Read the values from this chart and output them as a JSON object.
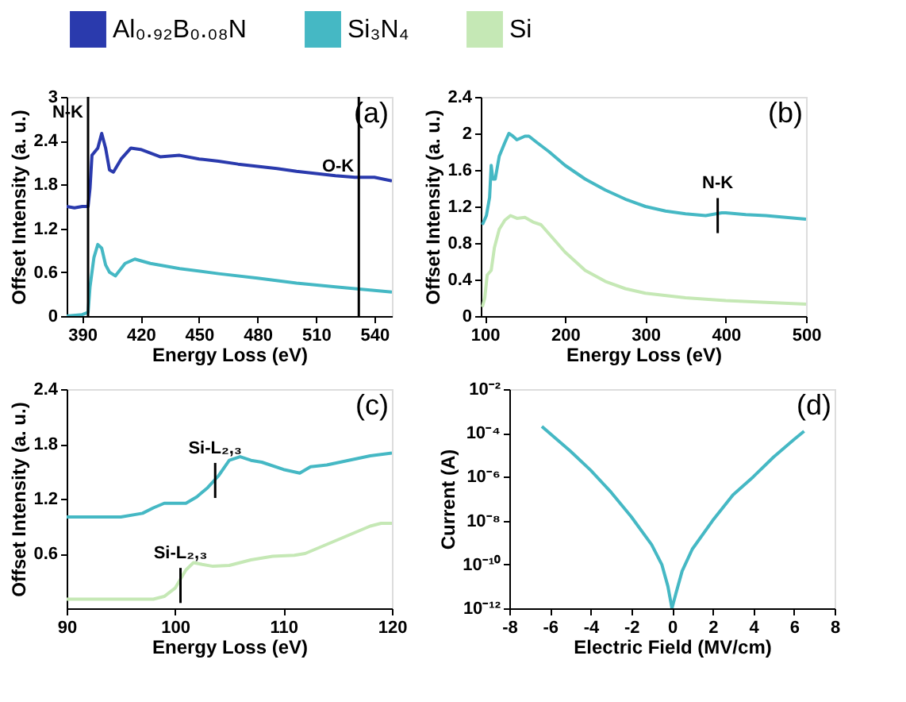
{
  "chart_data": [
    {
      "type": "line",
      "xlabel": "Energy Loss (eV)",
      "ylabel": "Offset Intensity (a. u.)",
      "legend": "top",
      "xlim": [
        382,
        549
      ],
      "xticks": [
        390,
        420,
        450,
        480,
        510,
        540
      ],
      "ylim": [
        0,
        3
      ],
      "yticks": [
        0,
        0.6,
        1.2,
        1.8,
        2.4,
        3
      ],
      "series": [
        {
          "name": "Al₀.₉₂B₀.₀₈N",
          "color": "#2a3aad",
          "x": [
            382,
            386,
            390,
            393,
            394,
            395,
            398,
            400,
            402,
            404,
            406,
            410,
            415,
            420,
            430,
            440,
            450,
            460,
            470,
            480,
            490,
            500,
            510,
            520,
            530,
            540,
            549
          ],
          "values": [
            1.5,
            1.48,
            1.5,
            1.5,
            1.75,
            2.2,
            2.3,
            2.5,
            2.3,
            2.0,
            1.97,
            2.15,
            2.3,
            2.28,
            2.18,
            2.2,
            2.15,
            2.12,
            2.08,
            2.05,
            2.02,
            1.98,
            1.95,
            1.92,
            1.9,
            1.9,
            1.85
          ]
        },
        {
          "name": "Si₃N₄",
          "color": "#45b8c4",
          "x": [
            382,
            390,
            393,
            394,
            396,
            398,
            400,
            402,
            404,
            407,
            412,
            417,
            425,
            440,
            460,
            480,
            500,
            520,
            540,
            549
          ],
          "values": [
            0,
            0.02,
            0.05,
            0.4,
            0.8,
            0.98,
            0.93,
            0.7,
            0.6,
            0.55,
            0.72,
            0.78,
            0.72,
            0.65,
            0.58,
            0.52,
            0.45,
            0.4,
            0.35,
            0.33
          ]
        }
      ],
      "ref_lines": [
        {
          "axis": "x",
          "value": 393,
          "label": "N-K"
        },
        {
          "axis": "x",
          "value": 532,
          "label": "O-K"
        }
      ],
      "annotations": [
        "(a)"
      ]
    },
    {
      "type": "line",
      "xlabel": "Energy Loss (eV)",
      "ylabel": "Offset Intensity (a. u.)",
      "xlim": [
        95,
        500
      ],
      "xticks": [
        100,
        200,
        300,
        400,
        500
      ],
      "ylim": [
        0,
        2.4
      ],
      "yticks": [
        0,
        0.4,
        0.8,
        1.2,
        1.6,
        2,
        2.4
      ],
      "series": [
        {
          "color": "#45b8c4",
          "x": [
            97,
            102,
            106,
            108,
            110,
            113,
            118,
            125,
            130,
            135,
            140,
            150,
            155,
            165,
            180,
            200,
            225,
            250,
            275,
            300,
            325,
            350,
            375,
            395,
            400,
            425,
            450,
            475,
            500
          ],
          "values": [
            1.0,
            1.1,
            1.3,
            1.65,
            1.5,
            1.5,
            1.75,
            1.9,
            2.0,
            1.97,
            1.93,
            1.97,
            1.97,
            1.9,
            1.8,
            1.65,
            1.5,
            1.38,
            1.28,
            1.2,
            1.15,
            1.12,
            1.1,
            1.13,
            1.13,
            1.11,
            1.1,
            1.08,
            1.06
          ]
        },
        {
          "name": "Si",
          "color": "#c5e8b5",
          "x": [
            97,
            100,
            103,
            108,
            112,
            118,
            125,
            132,
            140,
            150,
            160,
            170,
            180,
            200,
            225,
            250,
            275,
            300,
            350,
            400,
            450,
            500
          ],
          "values": [
            0.1,
            0.2,
            0.45,
            0.5,
            0.75,
            0.95,
            1.05,
            1.1,
            1.07,
            1.08,
            1.03,
            1.0,
            0.9,
            0.7,
            0.5,
            0.38,
            0.3,
            0.25,
            0.2,
            0.17,
            0.15,
            0.13
          ]
        }
      ],
      "annotations": [
        "(b)",
        {
          "text": "N-K",
          "x": 390,
          "y": 1.1
        }
      ]
    },
    {
      "type": "line",
      "xlabel": "Energy Loss (eV)",
      "ylabel": "Offset Intensity (a. u.)",
      "xlim": [
        90,
        120
      ],
      "xticks": [
        90,
        100,
        110,
        120
      ],
      "ylim": [
        0,
        2.4
      ],
      "yticks": [
        0.6,
        1.2,
        1.8,
        2.4
      ],
      "series": [
        {
          "color": "#45b8c4",
          "x": [
            90,
            92,
            95,
            97,
            98,
            99,
            101,
            102,
            103,
            104,
            105,
            106,
            107,
            108,
            110,
            111.5,
            112.5,
            114,
            116,
            118,
            120
          ],
          "values": [
            1.0,
            1.0,
            1.0,
            1.04,
            1.1,
            1.15,
            1.15,
            1.22,
            1.32,
            1.45,
            1.62,
            1.66,
            1.62,
            1.6,
            1.52,
            1.48,
            1.55,
            1.57,
            1.62,
            1.67,
            1.7
          ]
        },
        {
          "color": "#c5e8b5",
          "x": [
            90,
            98,
            99,
            100,
            101,
            101.7,
            102.5,
            103.5,
            105,
            107,
            109,
            111,
            112,
            114,
            116,
            118,
            119,
            120
          ],
          "values": [
            0.1,
            0.1,
            0.13,
            0.22,
            0.42,
            0.5,
            0.48,
            0.46,
            0.47,
            0.53,
            0.57,
            0.58,
            0.6,
            0.7,
            0.8,
            0.9,
            0.93,
            0.93
          ]
        }
      ],
      "annotations": [
        "(c)",
        {
          "text": "Si-L₂,₃",
          "x": 103.7,
          "y": 1.4
        },
        {
          "text": "Si-L₂,₃",
          "x": 100.5,
          "y": 0.25
        }
      ]
    },
    {
      "type": "line",
      "xlabel": "Electric Field (MV/cm)",
      "ylabel": "Current (A)",
      "log": "y",
      "xlim": [
        -8,
        8
      ],
      "xticks": [
        -8,
        -6,
        -4,
        -2,
        0,
        2,
        4,
        6,
        8
      ],
      "ylim": [
        1e-12,
        0.01
      ],
      "yticks": [
        {
          "value": 1e-12,
          "label": "10⁻¹²"
        },
        {
          "value": 1e-10,
          "label": "10⁻¹⁰"
        },
        {
          "value": 1e-08,
          "label": "10⁻⁸"
        },
        {
          "value": 1e-06,
          "label": "10⁻⁶"
        },
        {
          "value": 0.0001,
          "label": "10⁻⁴"
        },
        {
          "value": 0.01,
          "label": "10⁻²"
        }
      ],
      "series": [
        {
          "color": "#45b8c4",
          "x": [
            -6.4,
            -5,
            -4,
            -3,
            -2,
            -1,
            -0.5,
            -0.2,
            0,
            0.2,
            0.5,
            1,
            2,
            3,
            4,
            5,
            6,
            6.5
          ],
          "values": [
            0.0002,
            1.5e-05,
            2e-06,
            2e-07,
            1.5e-08,
            8e-10,
            1e-10,
            1e-11,
            1e-12,
            5e-12,
            5e-11,
            5e-10,
            1e-08,
            1.5e-07,
            1e-06,
            8e-06,
            5e-05,
            0.00012
          ]
        }
      ],
      "annotations": [
        "(d)"
      ]
    }
  ]
}
